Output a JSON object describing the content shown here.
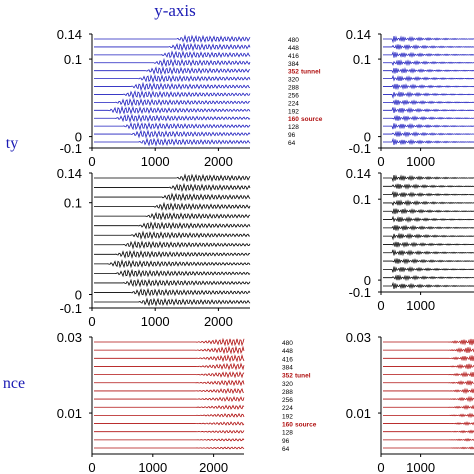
{
  "header": {
    "column_title": "y-axis"
  },
  "row_labels": [
    "ty",
    "nce"
  ],
  "colors": {
    "velocity": "#1f1fbf",
    "black": "#000000",
    "red": "#b01010",
    "title_blue": "#1a1ab4"
  },
  "channel_labels": [
    "480",
    "448",
    "416",
    "384",
    "352",
    "320",
    "288",
    "256",
    "224",
    "192",
    "160",
    "128",
    "96",
    "64"
  ],
  "annotations": {
    "tunnel_left": "tunnel",
    "tunnel_right": "tunel",
    "source": "source"
  },
  "chart_data": [
    {
      "type": "line",
      "panel": "row1-left",
      "title": "",
      "xlabel": "",
      "ylabel": "",
      "xlim": [
        0,
        2500
      ],
      "ylim": [
        -0.1,
        0.14
      ],
      "xticks": [
        "0",
        "1000",
        "2000"
      ],
      "yticks": [
        "0.14",
        "0.1",
        "0",
        "-0.1"
      ],
      "series_count": 14,
      "trace_color": "velocity",
      "channels": [
        "480",
        "448",
        "416",
        "384",
        "352",
        "320",
        "288",
        "256",
        "224",
        "192",
        "160",
        "128",
        "96",
        "64"
      ],
      "highlighted_channels": [
        "352",
        "160"
      ],
      "highlight_labels": {
        "352": "tunnel",
        "160": "source"
      }
    },
    {
      "type": "line",
      "panel": "row1-right",
      "xlim": [
        0,
        2500
      ],
      "ylim": [
        -0.1,
        0.14
      ],
      "xticks": [
        "0",
        "1000"
      ],
      "yticks": [
        "0.14",
        "0.1",
        "0",
        "-0.1"
      ],
      "series_count": 14,
      "trace_color": "velocity"
    },
    {
      "type": "line",
      "panel": "row2-left",
      "xlim": [
        0,
        2500
      ],
      "ylim": [
        -0.1,
        0.14
      ],
      "xticks": [
        "0",
        "1000",
        "2000"
      ],
      "yticks": [
        "0.14",
        "0.1",
        "0",
        "-0.1"
      ],
      "series_count": 14,
      "trace_color": "black"
    },
    {
      "type": "line",
      "panel": "row2-right",
      "xlim": [
        0,
        2500
      ],
      "ylim": [
        -0.1,
        0.14
      ],
      "xticks": [
        "0",
        "1000"
      ],
      "yticks": [
        "0.14",
        "0.1",
        "0",
        "-0.1"
      ],
      "series_count": 14,
      "trace_color": "black"
    },
    {
      "type": "line",
      "panel": "row3-left",
      "xlim": [
        0,
        2500
      ],
      "ylim": [
        0,
        0.03
      ],
      "xticks": [
        "0",
        "1000",
        "2000"
      ],
      "yticks": [
        "0.03",
        "0.01"
      ],
      "series_count": 14,
      "trace_color": "red",
      "channels": [
        "480",
        "448",
        "416",
        "384",
        "352",
        "320",
        "288",
        "256",
        "224",
        "192",
        "160",
        "128",
        "96",
        "64"
      ],
      "highlighted_channels": [
        "352",
        "160"
      ],
      "highlight_labels": {
        "352": "tunel",
        "160": "source"
      }
    },
    {
      "type": "line",
      "panel": "row3-right",
      "xlim": [
        0,
        2500
      ],
      "ylim": [
        0,
        0.03
      ],
      "xticks": [
        "0",
        "1000"
      ],
      "yticks": [
        "0.03",
        "0.01"
      ],
      "series_count": 14,
      "trace_color": "red"
    }
  ]
}
